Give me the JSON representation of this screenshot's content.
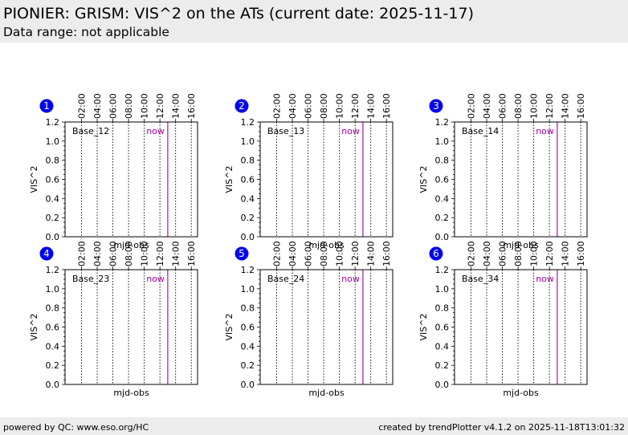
{
  "header": {
    "title": "PIONIER: GRISM: VIS^2 on the ATs (current date: 2025-11-17)",
    "subtitle": "Data range: not applicable"
  },
  "footer": {
    "left": "powered by QC: www.eso.org/HC",
    "right": "created by trendPlotter v4.1.2 on 2025-11-18T13:01:32"
  },
  "colors": {
    "badge": "#0000ee",
    "now_line": "#a000a0",
    "header_bg": "#ececec"
  },
  "chart_data": [
    {
      "type": "scatter",
      "panel": "1",
      "base_label": "Base_12",
      "now_label": "now",
      "xlabel": "mjd-obs",
      "ylabel": "VIS^2",
      "ylim": [
        0,
        1.2
      ],
      "yticks": [
        "0.0",
        "0.2",
        "0.4",
        "0.6",
        "0.8",
        "1.0",
        "1.2"
      ],
      "xticks": [
        "02:00",
        "04:00",
        "06:00",
        "08:00",
        "10:00",
        "12:00",
        "14:00",
        "16:00"
      ],
      "xlim_hours": [
        -0.1,
        16.8
      ],
      "now_hour": 13.0,
      "series": []
    },
    {
      "type": "scatter",
      "panel": "2",
      "base_label": "Base_13",
      "now_label": "now",
      "xlabel": "mjd-obs",
      "ylabel": "VIS^2",
      "ylim": [
        0,
        1.2
      ],
      "yticks": [
        "0.0",
        "0.2",
        "0.4",
        "0.6",
        "0.8",
        "1.0",
        "1.2"
      ],
      "xticks": [
        "02:00",
        "04:00",
        "06:00",
        "08:00",
        "10:00",
        "12:00",
        "14:00",
        "16:00"
      ],
      "xlim_hours": [
        -0.1,
        16.8
      ],
      "now_hour": 13.0,
      "series": []
    },
    {
      "type": "scatter",
      "panel": "3",
      "base_label": "Base_14",
      "now_label": "now",
      "xlabel": "mjd-obs",
      "ylabel": "VIS^2",
      "ylim": [
        0,
        1.2
      ],
      "yticks": [
        "0.0",
        "0.2",
        "0.4",
        "0.6",
        "0.8",
        "1.0",
        "1.2"
      ],
      "xticks": [
        "02:00",
        "04:00",
        "06:00",
        "08:00",
        "10:00",
        "12:00",
        "14:00",
        "16:00"
      ],
      "xlim_hours": [
        -0.1,
        16.8
      ],
      "now_hour": 13.0,
      "series": []
    },
    {
      "type": "scatter",
      "panel": "4",
      "base_label": "Base_23",
      "now_label": "now",
      "xlabel": "mjd-obs",
      "ylabel": "VIS^2",
      "ylim": [
        0,
        1.2
      ],
      "yticks": [
        "0.0",
        "0.2",
        "0.4",
        "0.6",
        "0.8",
        "1.0",
        "1.2"
      ],
      "xticks": [
        "02:00",
        "04:00",
        "06:00",
        "08:00",
        "10:00",
        "12:00",
        "14:00",
        "16:00"
      ],
      "xlim_hours": [
        -0.1,
        16.8
      ],
      "now_hour": 13.0,
      "series": []
    },
    {
      "type": "scatter",
      "panel": "5",
      "base_label": "Base_24",
      "now_label": "now",
      "xlabel": "mjd-obs",
      "ylabel": "VIS^2",
      "ylim": [
        0,
        1.2
      ],
      "yticks": [
        "0.0",
        "0.2",
        "0.4",
        "0.6",
        "0.8",
        "1.0",
        "1.2"
      ],
      "xticks": [
        "02:00",
        "04:00",
        "06:00",
        "08:00",
        "10:00",
        "12:00",
        "14:00",
        "16:00"
      ],
      "xlim_hours": [
        -0.1,
        16.8
      ],
      "now_hour": 13.0,
      "series": []
    },
    {
      "type": "scatter",
      "panel": "6",
      "base_label": "Base_34",
      "now_label": "now",
      "xlabel": "mjd-obs",
      "ylabel": "VIS^2",
      "ylim": [
        0,
        1.2
      ],
      "yticks": [
        "0.0",
        "0.2",
        "0.4",
        "0.6",
        "0.8",
        "1.0",
        "1.2"
      ],
      "xticks": [
        "02:00",
        "04:00",
        "06:00",
        "08:00",
        "10:00",
        "12:00",
        "14:00",
        "16:00"
      ],
      "xlim_hours": [
        -0.1,
        16.8
      ],
      "now_hour": 13.0,
      "series": []
    }
  ]
}
